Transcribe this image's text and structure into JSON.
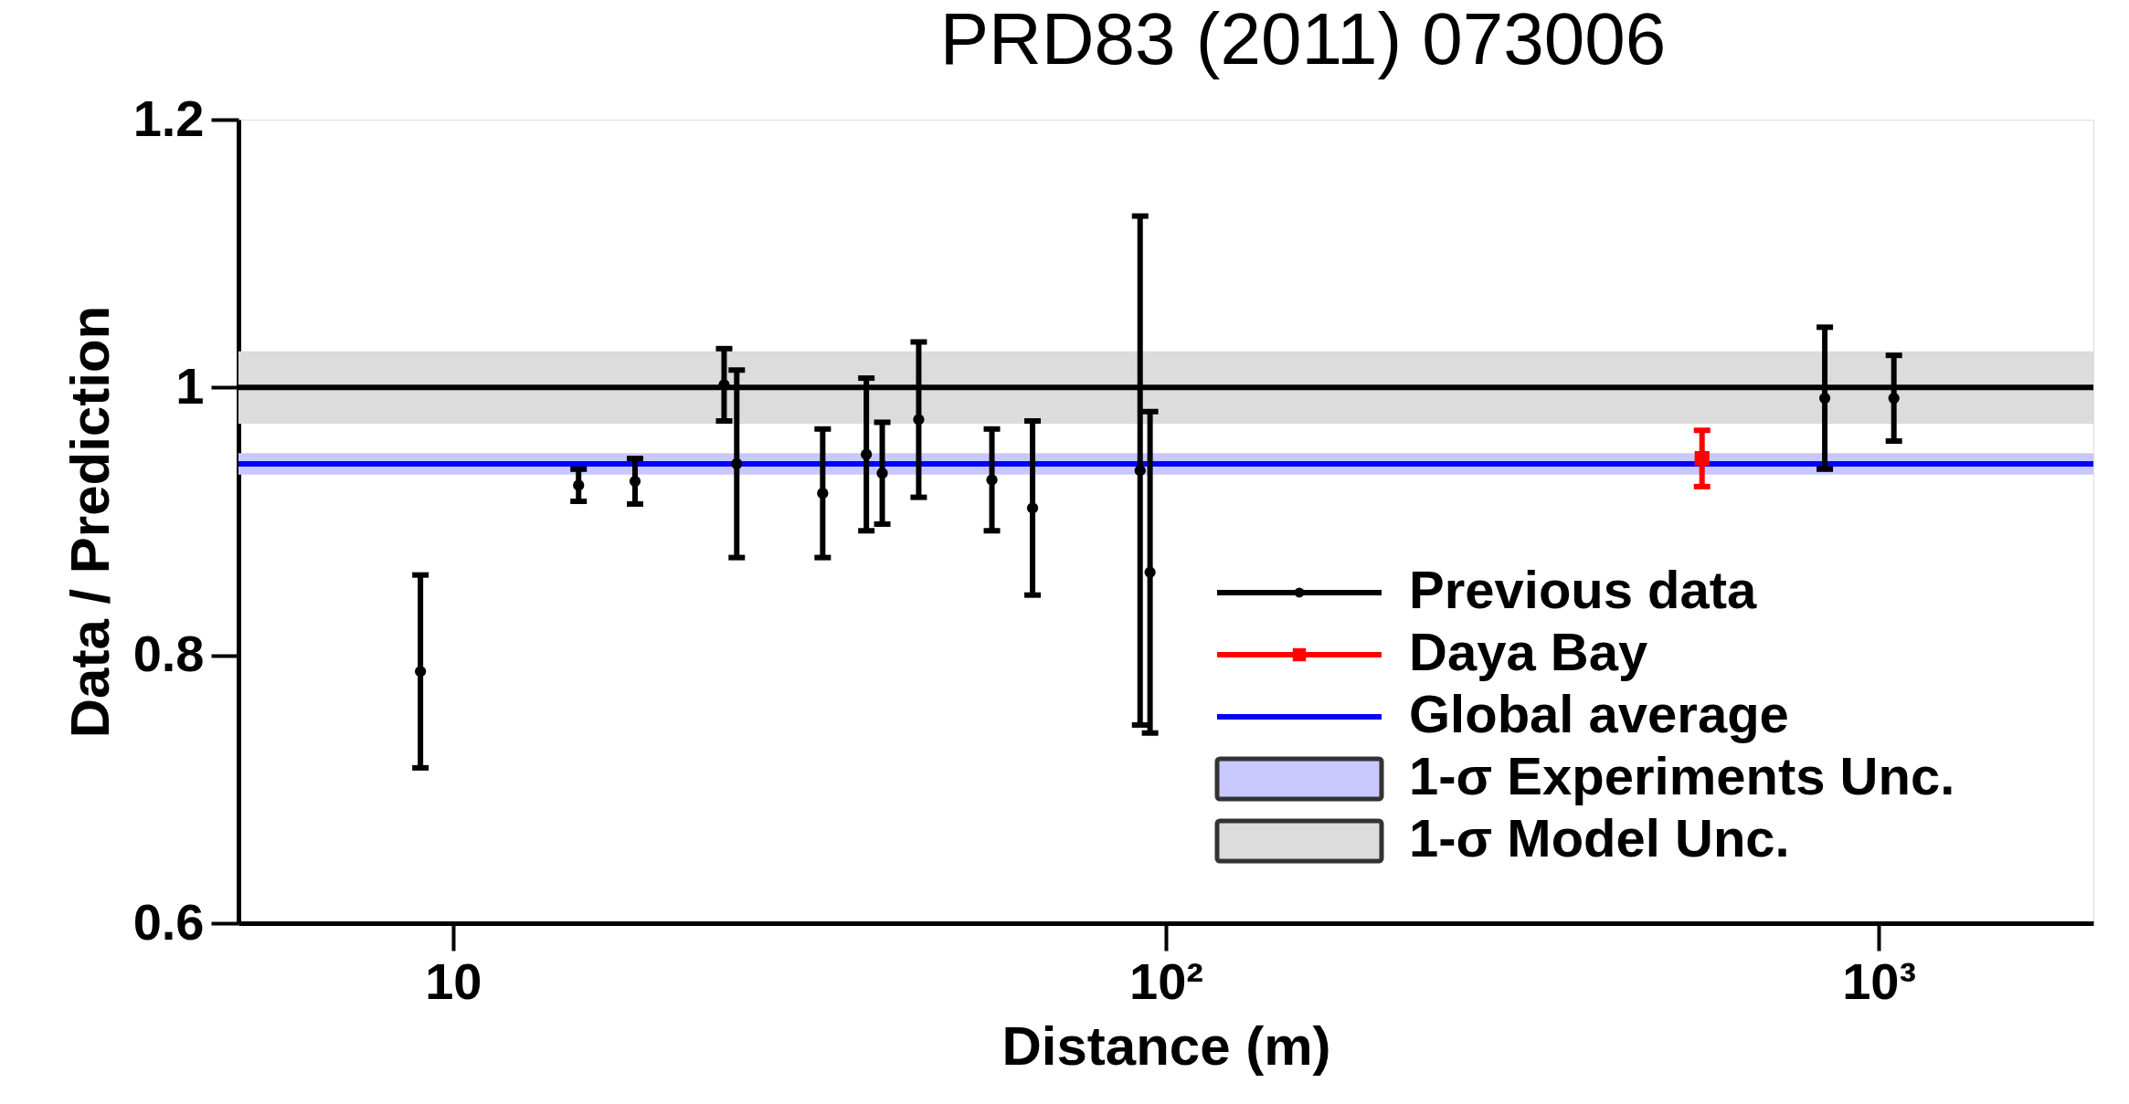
{
  "chart_data": {
    "type": "scatter",
    "title": "PRD83 (2011) 073006",
    "xlabel": "Distance (m)",
    "ylabel": "Data / Prediction",
    "log": "x",
    "xlim": [
      5,
      2000
    ],
    "xticks": [
      10,
      {
        "value": 100,
        "label": "10²"
      },
      {
        "value": 1000,
        "label": "10³"
      }
    ],
    "ylim": [
      0.6,
      1.2
    ],
    "yticks": [
      0.6,
      0.8,
      1,
      1.2
    ],
    "legend": "bottom right",
    "series": [
      {
        "name": "Previous data",
        "color": "#000000",
        "marker": "circle",
        "x": [
          9.0,
          15,
          18,
          24,
          25,
          33,
          38,
          40,
          45,
          57,
          65,
          92,
          95,
          840,
          1050
        ],
        "values": [
          0.788,
          0.927,
          0.93,
          1.002,
          0.943,
          0.921,
          0.95,
          0.936,
          0.976,
          0.931,
          0.91,
          0.938,
          0.862,
          0.992,
          0.992
        ],
        "errors": [
          0.072,
          0.012,
          0.017,
          0.027,
          0.07,
          0.048,
          0.057,
          0.038,
          0.058,
          0.038,
          0.065,
          0.19,
          0.12,
          0.053,
          0.032
        ]
      },
      {
        "name": "Daya Bay",
        "color": "#ff0000",
        "marker": "square",
        "x": [
          565
        ],
        "values": [
          0.947
        ],
        "errors": [
          0.021
        ]
      }
    ],
    "ref_lines": [
      {
        "axis": "y",
        "value": 1,
        "color": "#000000"
      },
      {
        "axis": "y",
        "value": 0.943,
        "label": "Global average",
        "color": "#0000ff"
      }
    ],
    "bands": [
      {
        "axis": "y",
        "from": 0.935,
        "to": 0.951,
        "label": "1-σ Experiments Unc.",
        "color": "#c8c8ff"
      },
      {
        "axis": "y",
        "from": 0.973,
        "to": 1.027,
        "label": "1-σ Model Unc.",
        "color": "#dcdcdc"
      }
    ]
  }
}
